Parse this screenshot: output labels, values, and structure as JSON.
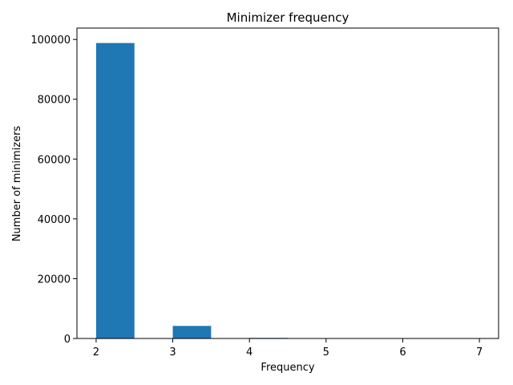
{
  "chart_data": {
    "type": "bar",
    "title": "Minimizer frequency",
    "xlabel": "Frequency",
    "ylabel": "Number of minimizers",
    "x_ticks": [
      "2",
      "3",
      "4",
      "5",
      "6",
      "7"
    ],
    "y_ticks": [
      "0",
      "20000",
      "40000",
      "60000",
      "80000",
      "100000"
    ],
    "xlim": [
      1.75,
      7.25
    ],
    "ylim": [
      0,
      103800
    ],
    "bin_width": 0.5,
    "bars": [
      {
        "x_start": 2.0,
        "value": 98800
      },
      {
        "x_start": 2.5,
        "value": 0
      },
      {
        "x_start": 3.0,
        "value": 4200
      },
      {
        "x_start": 3.5,
        "value": 0
      },
      {
        "x_start": 4.0,
        "value": 200
      },
      {
        "x_start": 4.5,
        "value": 0
      },
      {
        "x_start": 5.0,
        "value": 10
      },
      {
        "x_start": 5.5,
        "value": 0
      },
      {
        "x_start": 6.0,
        "value": 2
      },
      {
        "x_start": 6.5,
        "value": 1
      }
    ],
    "bar_color": "#1f77b4",
    "grid": false,
    "legend": "none"
  }
}
